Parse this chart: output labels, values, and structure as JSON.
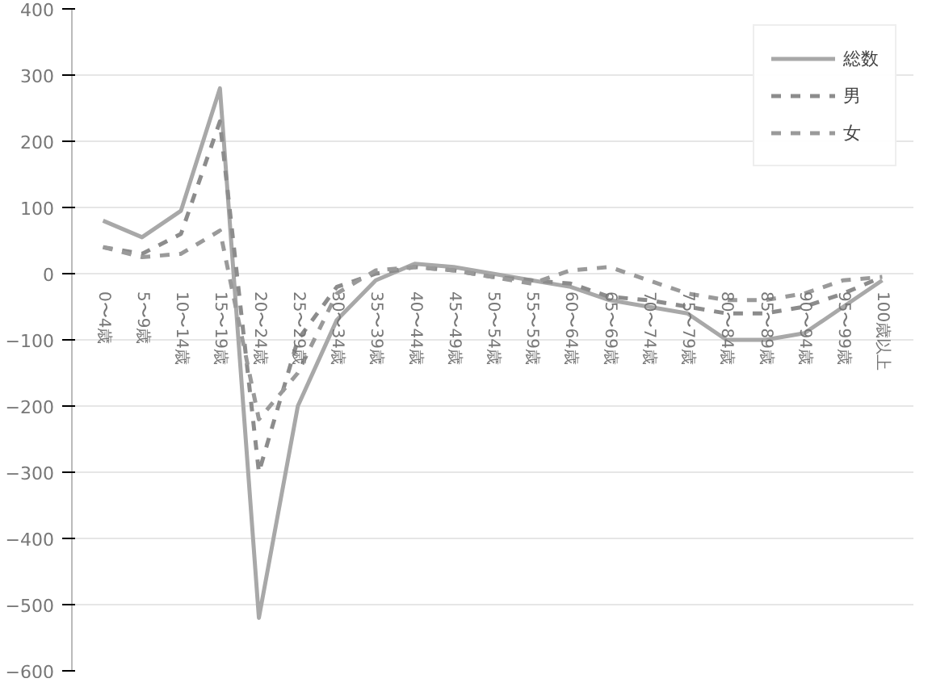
{
  "chart_data": {
    "type": "line",
    "categories": [
      "0〜4歳",
      "5〜9歳",
      "10〜14歳",
      "15〜19歳",
      "20〜24歳",
      "25〜29歳",
      "30〜34歳",
      "35〜39歳",
      "40〜44歳",
      "45〜49歳",
      "50〜54歳",
      "55〜59歳",
      "60〜64歳",
      "65〜69歳",
      "70〜74歳",
      "75〜79歳",
      "80〜84歳",
      "85〜89歳",
      "90〜94歳",
      "95〜99歳",
      "100歳以上"
    ],
    "series": [
      {
        "name": "総数",
        "color": "#a8a8a8",
        "line_style": "solid",
        "values": [
          80,
          55,
          95,
          280,
          -520,
          -200,
          -70,
          -10,
          15,
          10,
          0,
          -10,
          -20,
          -40,
          -50,
          -60,
          -100,
          -100,
          -90,
          -50,
          -10
        ]
      },
      {
        "name": "男",
        "color": "#8c8c8c",
        "line_style": "dashed",
        "values": [
          40,
          30,
          60,
          230,
          -300,
          -100,
          -20,
          0,
          10,
          5,
          -5,
          -10,
          -15,
          -35,
          -40,
          -50,
          -60,
          -60,
          -50,
          -30,
          -5
        ]
      },
      {
        "name": "女",
        "color": "#9a9a9a",
        "line_style": "dashed",
        "values": [
          40,
          25,
          30,
          65,
          -220,
          -150,
          -30,
          5,
          10,
          5,
          -5,
          -15,
          5,
          10,
          -10,
          -30,
          -40,
          -40,
          -30,
          -10,
          -5
        ]
      }
    ],
    "ylim": [
      -600,
      400
    ],
    "yticks": [
      -600,
      -500,
      -400,
      -300,
      -200,
      -100,
      0,
      100,
      200,
      300,
      400
    ],
    "grid": "y",
    "legend": "top right",
    "marker": "none"
  }
}
